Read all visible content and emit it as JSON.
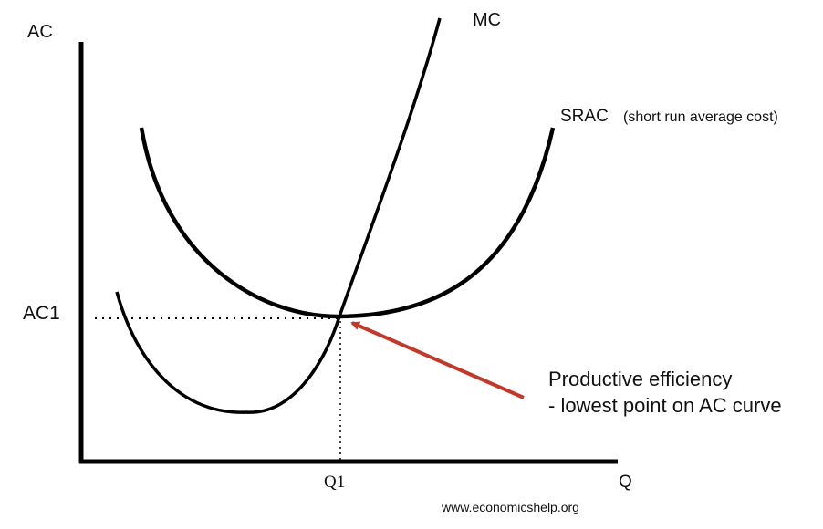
{
  "labels": {
    "y_axis": "AC",
    "x_axis": "Q",
    "mc": "MC",
    "srac": "SRAC",
    "srac_note": "(short run average cost)",
    "ac1": "AC1",
    "q1": "Q1",
    "annotation_line1": "Productive efficiency",
    "annotation_line2": "- lowest point on AC curve",
    "source": "www.economicshelp.org"
  },
  "colors": {
    "curve": "#000000",
    "arrow": "#c0392b",
    "text": "#111111"
  }
}
